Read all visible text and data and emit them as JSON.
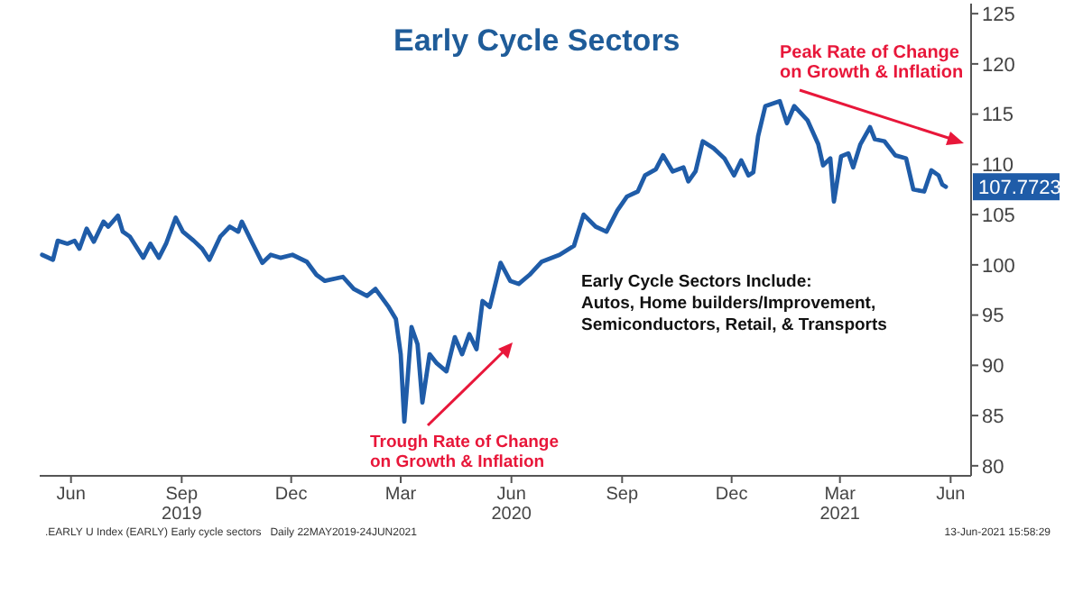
{
  "chart_data": {
    "type": "line",
    "title": "Early Cycle Sectors",
    "annotations": [
      "Peak Rate of Change\non Growth & Inflation",
      "Trough Rate of Change\non Growth & Inflation",
      "Early Cycle Sectors Include:\nAutos, Home builders/Improvement,\nSemiconductors, Retail, & Transports",
      {
        "text": "107.7723",
        "x": "2021-06-11",
        "y": 107.7723
      },
      ".EARLY U Index (EARLY) Early cycle sectors   Daily 22MAY2019-24JUN2021",
      "13-Jun-2021 15:58:29"
    ],
    "x": [
      "2019-05-22",
      "2019-05-31",
      "2019-06-04",
      "2019-06-12",
      "2019-06-18",
      "2019-06-22",
      "2019-06-28",
      "2019-07-04",
      "2019-07-12",
      "2019-07-16",
      "2019-07-24",
      "2019-07-28",
      "2019-08-03",
      "2019-08-14",
      "2019-08-20",
      "2019-08-27",
      "2019-09-02",
      "2019-09-10",
      "2019-09-16",
      "2019-09-25",
      "2019-10-02",
      "2019-10-08",
      "2019-10-17",
      "2019-10-25",
      "2019-11-01",
      "2019-11-04",
      "2019-11-13",
      "2019-11-21",
      "2019-11-28",
      "2019-12-06",
      "2019-12-16",
      "2019-12-28",
      "2020-01-05",
      "2020-01-12",
      "2020-01-27",
      "2020-02-05",
      "2020-02-16",
      "2020-02-23",
      "2020-03-05",
      "2020-03-11",
      "2020-03-15",
      "2020-03-18",
      "2020-03-24",
      "2020-03-29",
      "2020-04-02",
      "2020-04-08",
      "2020-04-14",
      "2020-04-22",
      "2020-04-29",
      "2020-05-05",
      "2020-05-11",
      "2020-05-17",
      "2020-05-22",
      "2020-05-28",
      "2020-06-06",
      "2020-06-14",
      "2020-06-21",
      "2020-06-30",
      "2020-07-10",
      "2020-07-25",
      "2020-08-06",
      "2020-08-14",
      "2020-08-24",
      "2020-09-02",
      "2020-09-11",
      "2020-09-19",
      "2020-09-28",
      "2020-10-04",
      "2020-10-13",
      "2020-10-19",
      "2020-10-27",
      "2020-11-05",
      "2020-11-09",
      "2020-11-15",
      "2020-11-21",
      "2020-11-30",
      "2020-12-09",
      "2020-12-17",
      "2020-12-23",
      "2020-12-29",
      "2021-01-02",
      "2021-01-06",
      "2021-01-12",
      "2021-01-24",
      "2021-01-30",
      "2021-02-05",
      "2021-02-16",
      "2021-02-25",
      "2021-03-01",
      "2021-03-07",
      "2021-03-10",
      "2021-03-16",
      "2021-03-22",
      "2021-03-26",
      "2021-04-01",
      "2021-04-09",
      "2021-04-13",
      "2021-04-21",
      "2021-04-30",
      "2021-05-09",
      "2021-05-15",
      "2021-05-24",
      "2021-05-30",
      "2021-06-05",
      "2021-06-08",
      "2021-06-11"
    ],
    "series": [
      {
        "color": "#1f5ca8",
        "values": [
          101.0,
          100.5,
          102.4,
          102.1,
          102.4,
          101.6,
          103.6,
          102.3,
          104.3,
          103.8,
          104.9,
          103.3,
          102.8,
          100.7,
          102.1,
          100.7,
          102.1,
          104.7,
          103.3,
          102.4,
          101.6,
          100.5,
          102.8,
          103.8,
          103.3,
          104.3,
          102.1,
          100.2,
          101.0,
          100.7,
          101.0,
          100.3,
          99.0,
          98.4,
          98.8,
          97.6,
          96.9,
          97.6,
          95.8,
          94.6,
          91.1,
          84.4,
          93.8,
          92.1,
          86.3,
          91.1,
          90.2,
          89.4,
          92.8,
          91.1,
          93.1,
          91.6,
          96.4,
          95.8,
          100.2,
          98.4,
          98.1,
          99.0,
          100.3,
          101.0,
          101.9,
          105.0,
          103.8,
          103.3,
          105.4,
          106.8,
          107.3,
          108.9,
          109.5,
          110.9,
          109.3,
          109.7,
          108.3,
          109.3,
          112.3,
          111.6,
          110.6,
          108.9,
          110.4,
          108.9,
          109.2,
          112.8,
          115.8,
          116.3,
          114.1,
          115.8,
          114.4,
          112.0,
          109.9,
          110.6,
          106.3,
          110.8,
          111.1,
          109.7,
          112.0,
          113.7,
          112.5,
          112.3,
          110.9,
          110.6,
          107.5,
          107.3,
          109.4,
          108.9,
          108.0,
          107.7723
        ]
      }
    ],
    "xlim": [
      "2019-05-20",
      "2021-07-02"
    ],
    "xticks": [
      {
        "value": "2019-06-15",
        "label": "Jun"
      },
      {
        "value": "2019-09-15",
        "label": "Sep\n2019"
      },
      {
        "value": "2019-12-15",
        "label": "Dec"
      },
      {
        "value": "2020-03-15",
        "label": "Mar"
      },
      {
        "value": "2020-06-15",
        "label": "Jun\n2020"
      },
      {
        "value": "2020-09-15",
        "label": "Sep"
      },
      {
        "value": "2020-12-15",
        "label": "Dec"
      },
      {
        "value": "2021-03-15",
        "label": "Mar\n2021"
      },
      {
        "value": "2021-06-15",
        "label": "Jun"
      }
    ],
    "ylim": [
      79,
      126
    ],
    "yticks": [
      80,
      85,
      90,
      95,
      100,
      105,
      110,
      115,
      120,
      125
    ],
    "grid": false,
    "marker": "none",
    "line_style": "solid"
  }
}
